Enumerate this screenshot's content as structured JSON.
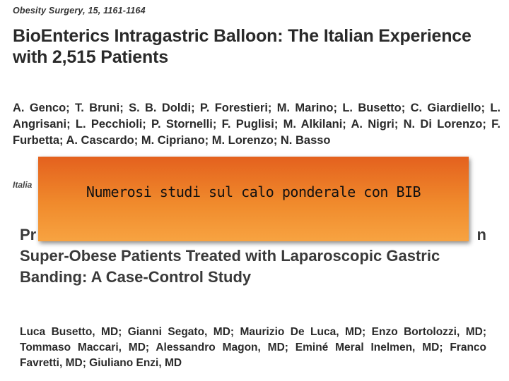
{
  "article1": {
    "journal": "Obesity Surgery, 15, 1161-1164",
    "title": "BioEnterics Intragastric Balloon: The Italian Experience with 2,515 Patients",
    "authors": "A. Genco; T. Bruni; S. B. Doldi; P. Forestieri; M. Marino; L. Busetto; C. Giardiello; L. Angrisani; L. Pecchioli; P. Stornelli; F. Puglisi; M. Alkilani; A. Nigri; N. Di Lorenzo; F. Furbetta; A. Cascardo; M. Cipriano; M. Lorenzo; N. Basso",
    "affiliation": "Italia"
  },
  "banner": {
    "text": "Numerosi studi sul calo ponderale con BIB"
  },
  "article2": {
    "title_line1_partial": "Pr",
    "title_line1_end": "n",
    "title_rest": "Super-Obese Patients Treated with Laparoscopic Gastric Banding: A Case-Control Study",
    "authors": "Luca Busetto, MD; Gianni Segato, MD; Maurizio De Luca, MD; Enzo Bortolozzi, MD; Tommaso Maccari, MD; Alessandro Magon, MD; Eminé Meral Inelmen, MD; Franco Favretti, MD; Giuliano Enzi, MD"
  }
}
